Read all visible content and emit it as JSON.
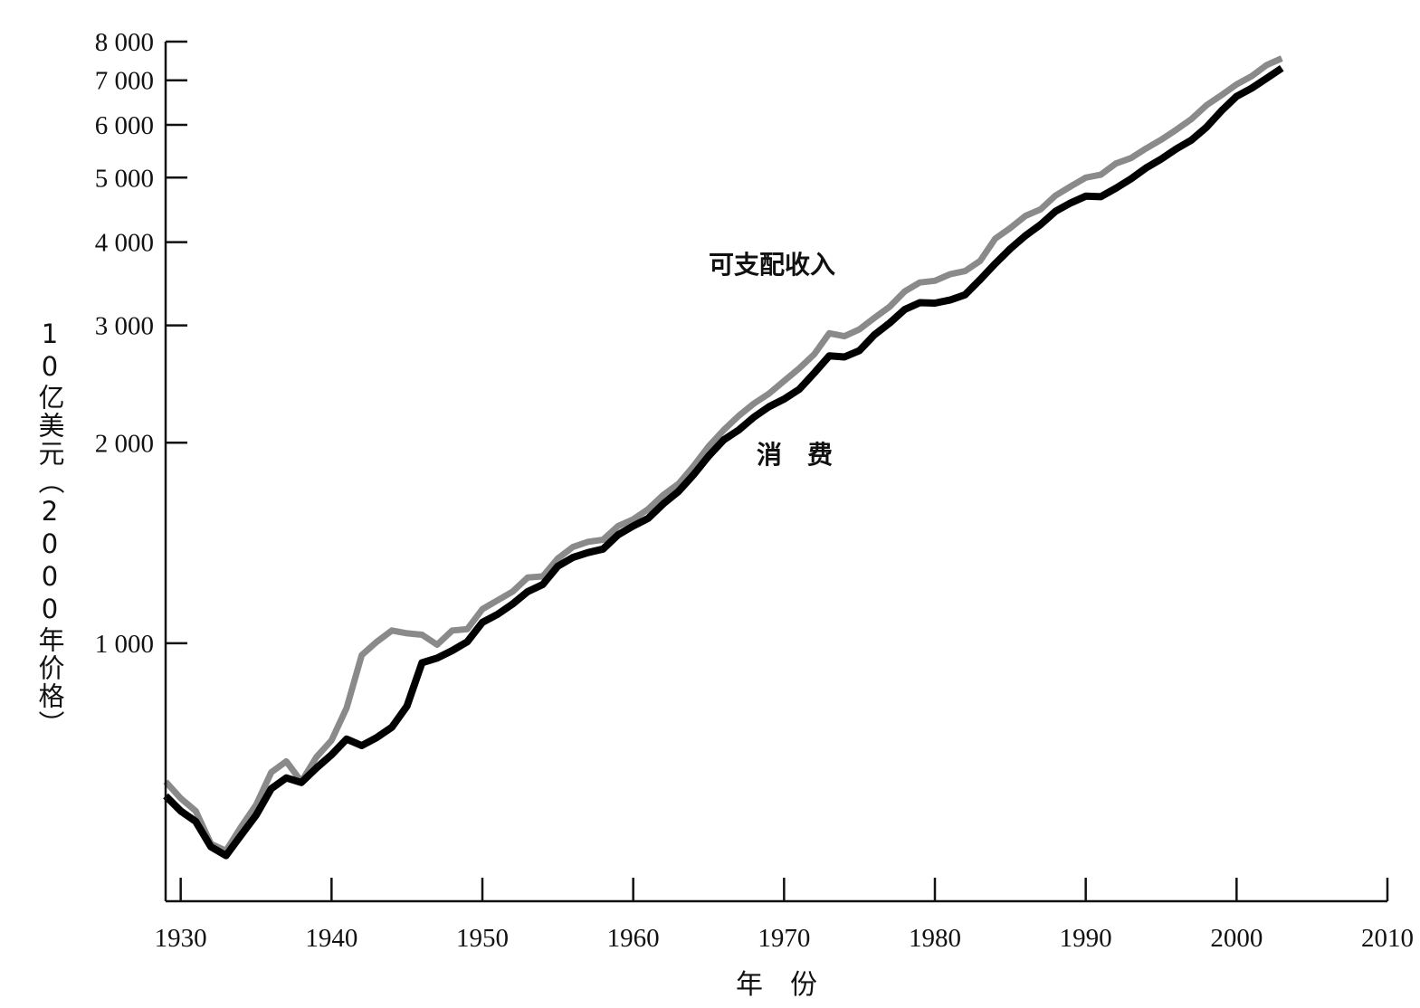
{
  "chart_data": {
    "type": "line",
    "title": "",
    "xlabel": "年　份",
    "ylabel": "10亿美元（2000年价格）",
    "yscale": "log",
    "xlim": [
      1929,
      2010
    ],
    "ylim": [
      410,
      8000
    ],
    "x_ticks": [
      1930,
      1940,
      1950,
      1960,
      1970,
      1980,
      1990,
      2000,
      2010
    ],
    "x_tick_labels": [
      "1930",
      "1940",
      "1950",
      "1960",
      "1970",
      "1980",
      "1990",
      "2000",
      "2010"
    ],
    "y_ticks": [
      1000,
      2000,
      3000,
      4000,
      5000,
      6000,
      7000,
      8000
    ],
    "y_tick_labels": [
      "1 000",
      "2 000",
      "3 000",
      "4 000",
      "5 000",
      "6 000",
      "7 000",
      "8 000"
    ],
    "grid": false,
    "series": [
      {
        "name": "可支配收入",
        "color": "#8a8a8a",
        "points": [
          [
            1929,
            620
          ],
          [
            1930,
            585
          ],
          [
            1931,
            560
          ],
          [
            1932,
            500
          ],
          [
            1933,
            488
          ],
          [
            1934,
            530
          ],
          [
            1935,
            572
          ],
          [
            1936,
            640
          ],
          [
            1937,
            665
          ],
          [
            1938,
            620
          ],
          [
            1939,
            675
          ],
          [
            1940,
            715
          ],
          [
            1941,
            800
          ],
          [
            1942,
            960
          ],
          [
            1943,
            1005
          ],
          [
            1944,
            1045
          ],
          [
            1945,
            1035
          ],
          [
            1946,
            1030
          ],
          [
            1947,
            995
          ],
          [
            1948,
            1045
          ],
          [
            1949,
            1050
          ],
          [
            1950,
            1125
          ],
          [
            1951,
            1160
          ],
          [
            1952,
            1195
          ],
          [
            1953,
            1255
          ],
          [
            1954,
            1260
          ],
          [
            1955,
            1340
          ],
          [
            1956,
            1395
          ],
          [
            1957,
            1420
          ],
          [
            1958,
            1430
          ],
          [
            1959,
            1500
          ],
          [
            1960,
            1535
          ],
          [
            1961,
            1590
          ],
          [
            1962,
            1670
          ],
          [
            1963,
            1735
          ],
          [
            1964,
            1845
          ],
          [
            1965,
            1975
          ],
          [
            1966,
            2090
          ],
          [
            1967,
            2195
          ],
          [
            1968,
            2290
          ],
          [
            1969,
            2370
          ],
          [
            1970,
            2475
          ],
          [
            1971,
            2585
          ],
          [
            1972,
            2715
          ],
          [
            1973,
            2920
          ],
          [
            1974,
            2890
          ],
          [
            1975,
            2960
          ],
          [
            1976,
            3080
          ],
          [
            1977,
            3200
          ],
          [
            1978,
            3375
          ],
          [
            1979,
            3480
          ],
          [
            1980,
            3500
          ],
          [
            1981,
            3580
          ],
          [
            1982,
            3620
          ],
          [
            1983,
            3750
          ],
          [
            1984,
            4050
          ],
          [
            1985,
            4200
          ],
          [
            1986,
            4380
          ],
          [
            1987,
            4480
          ],
          [
            1988,
            4700
          ],
          [
            1989,
            4850
          ],
          [
            1990,
            5000
          ],
          [
            1991,
            5050
          ],
          [
            1992,
            5250
          ],
          [
            1993,
            5350
          ],
          [
            1994,
            5530
          ],
          [
            1995,
            5700
          ],
          [
            1996,
            5900
          ],
          [
            1997,
            6120
          ],
          [
            1998,
            6420
          ],
          [
            1999,
            6650
          ],
          [
            2000,
            6900
          ],
          [
            2001,
            7100
          ],
          [
            2002,
            7380
          ],
          [
            2003,
            7550
          ]
        ]
      },
      {
        "name": "消费",
        "color": "#000000",
        "points": [
          [
            1929,
            590
          ],
          [
            1930,
            560
          ],
          [
            1931,
            540
          ],
          [
            1932,
            495
          ],
          [
            1933,
            480
          ],
          [
            1934,
            515
          ],
          [
            1935,
            552
          ],
          [
            1936,
            605
          ],
          [
            1937,
            628
          ],
          [
            1938,
            618
          ],
          [
            1939,
            650
          ],
          [
            1940,
            680
          ],
          [
            1941,
            718
          ],
          [
            1942,
            702
          ],
          [
            1943,
            722
          ],
          [
            1944,
            748
          ],
          [
            1945,
            805
          ],
          [
            1946,
            935
          ],
          [
            1947,
            950
          ],
          [
            1948,
            975
          ],
          [
            1949,
            1005
          ],
          [
            1950,
            1075
          ],
          [
            1951,
            1105
          ],
          [
            1952,
            1145
          ],
          [
            1953,
            1195
          ],
          [
            1954,
            1225
          ],
          [
            1955,
            1305
          ],
          [
            1956,
            1345
          ],
          [
            1957,
            1368
          ],
          [
            1958,
            1385
          ],
          [
            1959,
            1455
          ],
          [
            1960,
            1500
          ],
          [
            1961,
            1540
          ],
          [
            1962,
            1620
          ],
          [
            1963,
            1690
          ],
          [
            1964,
            1790
          ],
          [
            1965,
            1910
          ],
          [
            1966,
            2020
          ],
          [
            1967,
            2090
          ],
          [
            1968,
            2185
          ],
          [
            1969,
            2265
          ],
          [
            1970,
            2325
          ],
          [
            1971,
            2405
          ],
          [
            1972,
            2545
          ],
          [
            1973,
            2700
          ],
          [
            1974,
            2690
          ],
          [
            1975,
            2750
          ],
          [
            1976,
            2905
          ],
          [
            1977,
            3025
          ],
          [
            1978,
            3170
          ],
          [
            1979,
            3245
          ],
          [
            1980,
            3240
          ],
          [
            1981,
            3275
          ],
          [
            1982,
            3335
          ],
          [
            1983,
            3515
          ],
          [
            1984,
            3715
          ],
          [
            1985,
            3910
          ],
          [
            1986,
            4090
          ],
          [
            1987,
            4250
          ],
          [
            1988,
            4450
          ],
          [
            1989,
            4580
          ],
          [
            1990,
            4690
          ],
          [
            1991,
            4680
          ],
          [
            1992,
            4820
          ],
          [
            1993,
            4980
          ],
          [
            1994,
            5170
          ],
          [
            1995,
            5330
          ],
          [
            1996,
            5520
          ],
          [
            1997,
            5690
          ],
          [
            1998,
            5950
          ],
          [
            1999,
            6300
          ],
          [
            2000,
            6620
          ],
          [
            2001,
            6810
          ],
          [
            2002,
            7050
          ],
          [
            2003,
            7300
          ]
        ]
      }
    ],
    "annotations": [
      {
        "text": "可支配收入",
        "series": "可支配收入"
      },
      {
        "text": "消　费",
        "series": "消费"
      }
    ]
  }
}
